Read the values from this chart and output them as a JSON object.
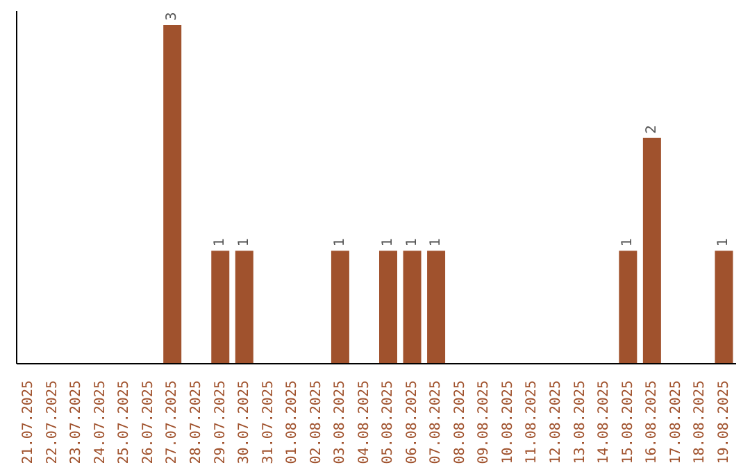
{
  "chart_data": {
    "type": "bar",
    "categories": [
      "21.07.2025",
      "22.07.2025",
      "23.07.2025",
      "24.07.2025",
      "25.07.2025",
      "26.07.2025",
      "27.07.2025",
      "28.07.2025",
      "29.07.2025",
      "30.07.2025",
      "31.07.2025",
      "01.08.2025",
      "02.08.2025",
      "03.08.2025",
      "04.08.2025",
      "05.08.2025",
      "06.08.2025",
      "07.08.2025",
      "08.08.2025",
      "09.08.2025",
      "10.08.2025",
      "11.08.2025",
      "12.08.2025",
      "13.08.2025",
      "14.08.2025",
      "15.08.2025",
      "16.08.2025",
      "17.08.2025",
      "18.08.2025",
      "19.08.2025"
    ],
    "values": [
      0,
      0,
      0,
      0,
      0,
      0,
      3,
      0,
      1,
      1,
      0,
      0,
      0,
      1,
      0,
      1,
      1,
      1,
      0,
      0,
      0,
      0,
      0,
      0,
      0,
      1,
      2,
      0,
      0,
      1
    ],
    "value_labels": [
      null,
      null,
      null,
      null,
      null,
      null,
      "3",
      null,
      "1",
      "1",
      null,
      null,
      null,
      "1",
      null,
      "1",
      "1",
      "1",
      null,
      null,
      null,
      null,
      null,
      null,
      null,
      "1",
      "2",
      null,
      null,
      "1"
    ],
    "color": "#a0522d",
    "grid": false,
    "legend": false,
    "tick_labels": "x"
  }
}
